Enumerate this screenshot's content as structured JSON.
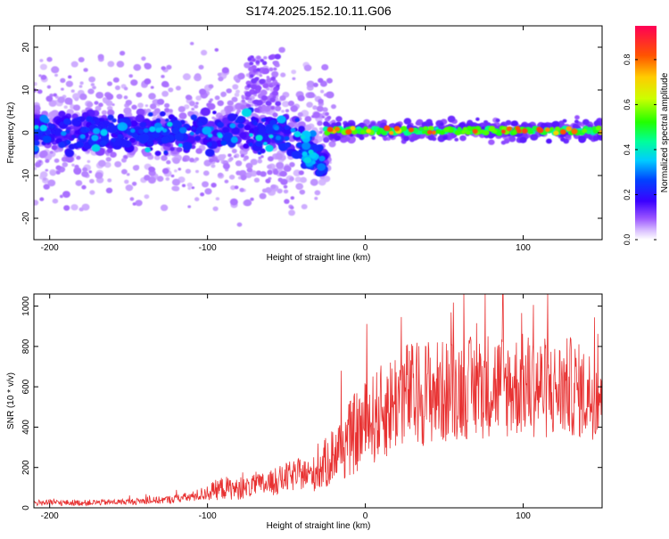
{
  "title": "S174.2025.152.10.11.G06",
  "colors": {
    "snr_line": "#e83232",
    "axis": "#000000",
    "spec_low": "#cc99ff",
    "spec_mid": "#3300ff",
    "spec_high": "#ff0033"
  },
  "chart_data": [
    {
      "type": "heatmap",
      "xlabel": "Height of straight line (km)",
      "ylabel": "Frequency (Hz)",
      "xlim": [
        -210,
        150
      ],
      "ylim": [
        -25,
        25
      ],
      "xticks": [
        -200,
        -100,
        0,
        100
      ],
      "xtick_labels": [
        "-200",
        "-100",
        "0",
        "100"
      ],
      "yticks": [
        -20,
        -10,
        0,
        10,
        20
      ],
      "ytick_labels": [
        "-20",
        "-10",
        "0",
        "10",
        "20"
      ],
      "colorbar": {
        "label": "Normalized spectral amplitude",
        "range": [
          0,
          0.95
        ],
        "ticks": [
          0.0,
          0.2,
          0.4,
          0.6,
          0.8
        ],
        "tick_labels": [
          "0.0",
          "0.2",
          "0.4",
          "0.6",
          "0.8"
        ]
      },
      "features": {
        "noise_region_x": [
          -210,
          -30
        ],
        "tone_region_x": [
          -25,
          150
        ],
        "tone_frequency_hz": 0.5,
        "dip_x": -35,
        "dip_frequency_hz": -6
      }
    },
    {
      "type": "line",
      "xlabel": "Height of straight line (km)",
      "ylabel": "SNR (10 * v/v)",
      "xlim": [
        -210,
        150
      ],
      "ylim": [
        0,
        1060
      ],
      "xticks": [
        -200,
        -100,
        0,
        100
      ],
      "xtick_labels": [
        "-200",
        "-100",
        "0",
        "100"
      ],
      "yticks": [
        0,
        200,
        400,
        600,
        800,
        1000
      ],
      "ytick_labels": [
        "0",
        "200",
        "400",
        "600",
        "800",
        "1000"
      ],
      "series": [
        {
          "color": "#e83232",
          "x": [
            -210,
            -180,
            -150,
            -125,
            -110,
            -100,
            -90,
            -80,
            -70,
            -60,
            -50,
            -40,
            -35,
            -30,
            -25,
            -20,
            -15,
            -10,
            -5,
            0,
            5,
            10,
            15,
            20,
            25,
            30,
            40,
            50,
            60,
            70,
            80,
            90,
            100,
            110,
            120,
            130,
            140,
            150
          ],
          "y": [
            25,
            25,
            30,
            40,
            55,
            75,
            100,
            90,
            110,
            120,
            150,
            170,
            160,
            180,
            220,
            270,
            300,
            340,
            380,
            410,
            440,
            470,
            500,
            540,
            570,
            560,
            580,
            570,
            600,
            590,
            620,
            600,
            610,
            600,
            580,
            600,
            560,
            580
          ],
          "amp": [
            15,
            15,
            15,
            20,
            25,
            40,
            60,
            50,
            55,
            65,
            75,
            80,
            80,
            100,
            130,
            150,
            170,
            190,
            210,
            220,
            230,
            240,
            250,
            260,
            270,
            260,
            270,
            260,
            260,
            260,
            270,
            260,
            260,
            260,
            250,
            250,
            230,
            230
          ]
        }
      ]
    }
  ]
}
